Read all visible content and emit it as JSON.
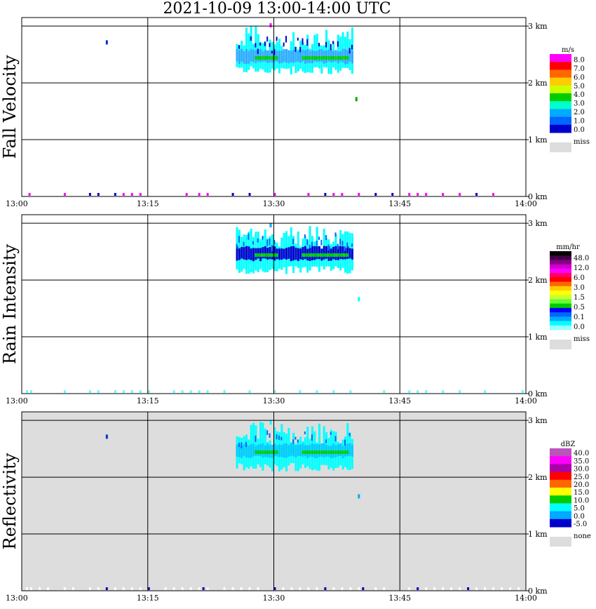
{
  "title": "2021-10-09   13:00-14:00 UTC",
  "chart_data": [
    {
      "type": "heatmap",
      "title": "Fall Velocity",
      "xlabel": "",
      "ylabel": "Fall Velocity",
      "x_tick_labels": [
        "13:00",
        "13:15",
        "13:30",
        "13:45",
        "14:00"
      ],
      "x_range_minutes": [
        0,
        60
      ],
      "y_tick_labels": [
        "0 km",
        "1 km",
        "2 km",
        "3 km"
      ],
      "y_range_km": [
        0,
        3.15
      ],
      "background": "#ffffff",
      "colorbar": {
        "unit": "m/s",
        "labels": [
          "8.0",
          "7.0",
          "6.0",
          "5.0",
          "4.0",
          "3.0",
          "2.0",
          "1.0",
          "0.0"
        ],
        "colors": [
          "#ff00ff",
          "#ff0000",
          "#ff6600",
          "#ffcc00",
          "#ccff00",
          "#00cc00",
          "#00ffcc",
          "#00aaff",
          "#0066ff",
          "#0000cc"
        ],
        "missing_label": "miss",
        "missing_color": "#dddddd"
      },
      "rain_band": {
        "start_min": 25.5,
        "end_min": 39.5,
        "top_km": 2.75,
        "bottom_km": 2.15,
        "core_color": "#33aaff",
        "fringe_color": "#00ffff",
        "high_color": "#0000cc",
        "inner_color": "#00cc00"
      },
      "scatter_cells": [
        {
          "t": 10,
          "km": 2.75,
          "color": "#0033cc"
        },
        {
          "t": 29.5,
          "km": 3.05,
          "color": "#ff00ff"
        },
        {
          "t": 39.7,
          "km": 1.75,
          "color": "#00aa00"
        }
      ],
      "ground_cells": [
        {
          "t": 0.8,
          "color": "#ff00ff"
        },
        {
          "t": 5,
          "color": "#ff00ff"
        },
        {
          "t": 8,
          "color": "#0000cc"
        },
        {
          "t": 9,
          "color": "#0000cc"
        },
        {
          "t": 11,
          "color": "#0000cc"
        },
        {
          "t": 12,
          "color": "#ff00ff"
        },
        {
          "t": 13,
          "color": "#ff00ff"
        },
        {
          "t": 14,
          "color": "#ff00ff"
        },
        {
          "t": 19.5,
          "color": "#ff00ff"
        },
        {
          "t": 21,
          "color": "#ff00ff"
        },
        {
          "t": 22,
          "color": "#ff00ff"
        },
        {
          "t": 25,
          "color": "#0000cc"
        },
        {
          "t": 27,
          "color": "#0000cc"
        },
        {
          "t": 30,
          "color": "#ff00ff"
        },
        {
          "t": 34,
          "color": "#ff00ff"
        },
        {
          "t": 36,
          "color": "#0000cc"
        },
        {
          "t": 37,
          "color": "#ff00ff"
        },
        {
          "t": 38,
          "color": "#ff00ff"
        },
        {
          "t": 40,
          "color": "#ff00ff"
        },
        {
          "t": 42,
          "color": "#0000cc"
        },
        {
          "t": 44,
          "color": "#0000cc"
        },
        {
          "t": 46,
          "color": "#ff00ff"
        },
        {
          "t": 47,
          "color": "#ff00ff"
        },
        {
          "t": 48,
          "color": "#ff00ff"
        },
        {
          "t": 50,
          "color": "#ff00ff"
        },
        {
          "t": 52,
          "color": "#ff00ff"
        },
        {
          "t": 54,
          "color": "#0000cc"
        },
        {
          "t": 56,
          "color": "#ff00ff"
        }
      ]
    },
    {
      "type": "heatmap",
      "title": "Rain Intensity",
      "xlabel": "",
      "ylabel": "Rain Intensity",
      "x_tick_labels": [
        "13:00",
        "13:15",
        "13:30",
        "13:45",
        "14:00"
      ],
      "x_range_minutes": [
        0,
        60
      ],
      "y_tick_labels": [
        "0 km",
        "1 km",
        "2 km",
        "3 km"
      ],
      "y_range_km": [
        0,
        3.15
      ],
      "background": "#ffffff",
      "colorbar": {
        "unit": "mm/hr",
        "labels": [
          "48.0",
          "12.0",
          "6.0",
          "3.0",
          "1.5",
          "0.5",
          "0.1",
          "0.0"
        ],
        "colors": [
          "#000000",
          "#440044",
          "#880088",
          "#cc00cc",
          "#ff00ff",
          "#ff0066",
          "#ff0000",
          "#ff6600",
          "#ffcc00",
          "#ffff00",
          "#ccff33",
          "#66ff33",
          "#00cc00",
          "#0000ff",
          "#0066ff",
          "#00aaff",
          "#00ffff",
          "#99ffff"
        ],
        "missing_label": "miss",
        "missing_color": "#dddddd"
      },
      "rain_band": {
        "start_min": 25.5,
        "end_min": 39.5,
        "top_km": 2.75,
        "bottom_km": 2.1,
        "core_color": "#0000cc",
        "fringe_color": "#00ffff",
        "high_color": "#0066ff",
        "inner_color": "#00cc00"
      },
      "scatter_cells": [
        {
          "t": 29.5,
          "km": 3.0,
          "color": "#00aaff"
        },
        {
          "t": 40,
          "km": 1.7,
          "color": "#00ffff"
        }
      ],
      "ground_cells": [
        {
          "t": 0.5,
          "color": "#66ffff"
        },
        {
          "t": 1,
          "color": "#66ffff"
        },
        {
          "t": 5,
          "color": "#66ffff"
        },
        {
          "t": 8,
          "color": "#66ffff"
        },
        {
          "t": 9,
          "color": "#66ffff"
        },
        {
          "t": 11,
          "color": "#66ffff"
        },
        {
          "t": 12,
          "color": "#66ffff"
        },
        {
          "t": 13,
          "color": "#66ffff"
        },
        {
          "t": 14,
          "color": "#66ffff"
        },
        {
          "t": 15,
          "color": "#66ffff"
        },
        {
          "t": 18,
          "color": "#66ffff"
        },
        {
          "t": 19,
          "color": "#66ffff"
        },
        {
          "t": 20,
          "color": "#66ffff"
        },
        {
          "t": 21,
          "color": "#66ffff"
        },
        {
          "t": 22,
          "color": "#66ffff"
        },
        {
          "t": 24,
          "color": "#66ffff"
        },
        {
          "t": 27,
          "color": "#66ffff"
        },
        {
          "t": 30,
          "color": "#66ffff"
        },
        {
          "t": 33,
          "color": "#66ffff"
        },
        {
          "t": 35,
          "color": "#66ffff"
        },
        {
          "t": 37,
          "color": "#66ffff"
        },
        {
          "t": 39,
          "color": "#66ffff"
        },
        {
          "t": 43,
          "color": "#66ffff"
        },
        {
          "t": 46,
          "color": "#66ffff"
        },
        {
          "t": 47,
          "color": "#66ffff"
        },
        {
          "t": 48,
          "color": "#66ffff"
        },
        {
          "t": 50,
          "color": "#66ffff"
        },
        {
          "t": 52,
          "color": "#66ffff"
        },
        {
          "t": 55,
          "color": "#66ffff"
        },
        {
          "t": 59.5,
          "color": "#66ffff"
        }
      ]
    },
    {
      "type": "heatmap",
      "title": "Reflectivity",
      "xlabel": "",
      "ylabel": "Reflectivity",
      "x_tick_labels": [
        "13:00",
        "13:15",
        "13:30",
        "13:45",
        "14:00"
      ],
      "x_range_minutes": [
        0,
        60
      ],
      "y_tick_labels": [
        "0 km",
        "1 km",
        "2 km",
        "3 km"
      ],
      "y_range_km": [
        0,
        3.15
      ],
      "background": "#dddddd",
      "colorbar": {
        "unit": "dBZ",
        "labels": [
          "40.0",
          "35.0",
          "30.0",
          "25.0",
          "20.0",
          "15.0",
          "10.0",
          "5.0",
          "0.0",
          "-5.0"
        ],
        "colors": [
          "#bb55bb",
          "#ff00ff",
          "#aa00aa",
          "#ff0000",
          "#ff6600",
          "#ffff00",
          "#00cc00",
          "#00ffff",
          "#00aaff",
          "#0000cc"
        ],
        "missing_label": "none",
        "missing_color": "#dddddd"
      },
      "rain_band": {
        "start_min": 25.5,
        "end_min": 39.5,
        "top_km": 2.75,
        "bottom_km": 2.1,
        "core_color": "#00ccff",
        "fringe_color": "#00ffff",
        "high_color": "#0066ff",
        "inner_color": "#00cc00"
      },
      "scatter_cells": [
        {
          "t": 10,
          "km": 2.75,
          "color": "#0033cc"
        },
        {
          "t": 29.5,
          "km": 3.0,
          "color": "#00ffff"
        },
        {
          "t": 40,
          "km": 1.7,
          "color": "#00aaff"
        }
      ],
      "ground_cells": [
        {
          "t": 0.5,
          "color": "#ffffff"
        },
        {
          "t": 1,
          "color": "#ffffff"
        },
        {
          "t": 2,
          "color": "#ffffff"
        },
        {
          "t": 3,
          "color": "#ffffff"
        },
        {
          "t": 5,
          "color": "#ffffff"
        },
        {
          "t": 6,
          "color": "#ffffff"
        },
        {
          "t": 8,
          "color": "#ffffff"
        },
        {
          "t": 9,
          "color": "#ffffff"
        },
        {
          "t": 11,
          "color": "#ffffff"
        },
        {
          "t": 12,
          "color": "#ffffff"
        },
        {
          "t": 13,
          "color": "#ffffff"
        },
        {
          "t": 14,
          "color": "#ffffff"
        },
        {
          "t": 15,
          "color": "#ffffff"
        },
        {
          "t": 17,
          "color": "#ffffff"
        },
        {
          "t": 18,
          "color": "#ffffff"
        },
        {
          "t": 19,
          "color": "#ffffff"
        },
        {
          "t": 20,
          "color": "#ffffff"
        },
        {
          "t": 21,
          "color": "#ffffff"
        },
        {
          "t": 22,
          "color": "#ffffff"
        },
        {
          "t": 24,
          "color": "#ffffff"
        },
        {
          "t": 25,
          "color": "#ffffff"
        },
        {
          "t": 26,
          "color": "#ffffff"
        },
        {
          "t": 27,
          "color": "#ffffff"
        },
        {
          "t": 28,
          "color": "#ffffff"
        },
        {
          "t": 30,
          "color": "#ffffff"
        },
        {
          "t": 31,
          "color": "#ffffff"
        },
        {
          "t": 32,
          "color": "#ffffff"
        },
        {
          "t": 33,
          "color": "#ffffff"
        },
        {
          "t": 34,
          "color": "#ffffff"
        },
        {
          "t": 35,
          "color": "#ffffff"
        },
        {
          "t": 36,
          "color": "#ffffff"
        },
        {
          "t": 37,
          "color": "#ffffff"
        },
        {
          "t": 38,
          "color": "#ffffff"
        },
        {
          "t": 39,
          "color": "#ffffff"
        },
        {
          "t": 40,
          "color": "#ffffff"
        },
        {
          "t": 42,
          "color": "#ffffff"
        },
        {
          "t": 43,
          "color": "#ffffff"
        },
        {
          "t": 46,
          "color": "#ffffff"
        },
        {
          "t": 47,
          "color": "#ffffff"
        },
        {
          "t": 48,
          "color": "#ffffff"
        },
        {
          "t": 49,
          "color": "#ffffff"
        },
        {
          "t": 50,
          "color": "#ffffff"
        },
        {
          "t": 51,
          "color": "#ffffff"
        },
        {
          "t": 52,
          "color": "#ffffff"
        },
        {
          "t": 54,
          "color": "#ffffff"
        },
        {
          "t": 55,
          "color": "#ffffff"
        },
        {
          "t": 56,
          "color": "#ffffff"
        },
        {
          "t": 57,
          "color": "#ffffff"
        },
        {
          "t": 58,
          "color": "#ffffff"
        },
        {
          "t": 59,
          "color": "#ffffff"
        },
        {
          "t": 10,
          "color": "#0000cc"
        },
        {
          "t": 15,
          "color": "#0000cc"
        },
        {
          "t": 21.5,
          "color": "#0000cc"
        },
        {
          "t": 30,
          "color": "#0000cc"
        },
        {
          "t": 36,
          "color": "#0000cc"
        },
        {
          "t": 40.5,
          "color": "#0000cc"
        },
        {
          "t": 47,
          "color": "#0000cc"
        },
        {
          "t": 53,
          "color": "#0000cc"
        }
      ]
    }
  ]
}
